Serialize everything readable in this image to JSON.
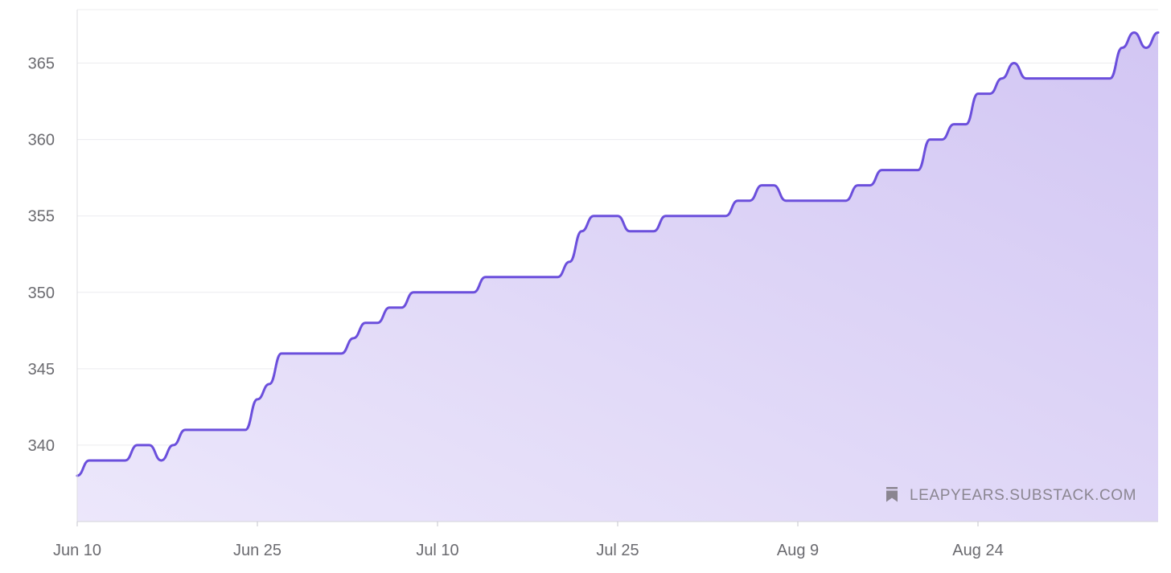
{
  "chart_data": {
    "type": "area",
    "title": "",
    "xlabel": "",
    "ylabel": "",
    "ylim": [
      335,
      368.5
    ],
    "xlim": [
      "2024-06-10",
      "2024-09-08"
    ],
    "y_ticks": [
      340,
      345,
      350,
      355,
      360,
      365
    ],
    "x_ticks": [
      {
        "date": "2024-06-10",
        "label": "Jun 10"
      },
      {
        "date": "2024-06-25",
        "label": "Jun 25"
      },
      {
        "date": "2024-07-10",
        "label": "Jul 10"
      },
      {
        "date": "2024-07-25",
        "label": "Jul 25"
      },
      {
        "date": "2024-08-09",
        "label": "Aug 9"
      },
      {
        "date": "2024-08-24",
        "label": "Aug 24"
      }
    ],
    "grid": true,
    "legend": "none",
    "series": [
      {
        "x": [
          "2024-06-10",
          "2024-06-11",
          "2024-06-13",
          "2024-06-14",
          "2024-06-15",
          "2024-06-16",
          "2024-06-17",
          "2024-06-18",
          "2024-06-19",
          "2024-06-20",
          "2024-06-23",
          "2024-06-24",
          "2024-06-25",
          "2024-06-26",
          "2024-06-27",
          "2024-06-28",
          "2024-06-29",
          "2024-06-30",
          "2024-07-01",
          "2024-07-02",
          "2024-07-03",
          "2024-07-04",
          "2024-07-05",
          "2024-07-06",
          "2024-07-07",
          "2024-07-08",
          "2024-07-09",
          "2024-07-10",
          "2024-07-13",
          "2024-07-14",
          "2024-07-15",
          "2024-07-19",
          "2024-07-20",
          "2024-07-21",
          "2024-07-22",
          "2024-07-23",
          "2024-07-24",
          "2024-07-25",
          "2024-07-26",
          "2024-07-27",
          "2024-07-28",
          "2024-07-29",
          "2024-07-30",
          "2024-08-03",
          "2024-08-04",
          "2024-08-05",
          "2024-08-06",
          "2024-08-07",
          "2024-08-08",
          "2024-08-09",
          "2024-08-10",
          "2024-08-12",
          "2024-08-13",
          "2024-08-14",
          "2024-08-15",
          "2024-08-16",
          "2024-08-17",
          "2024-08-18",
          "2024-08-19",
          "2024-08-20",
          "2024-08-21",
          "2024-08-22",
          "2024-08-23",
          "2024-08-24",
          "2024-08-25",
          "2024-08-26",
          "2024-08-27",
          "2024-08-28",
          "2024-08-31",
          "2024-09-01",
          "2024-09-02",
          "2024-09-03",
          "2024-09-04",
          "2024-09-05",
          "2024-09-06",
          "2024-09-07",
          "2024-09-08"
        ],
        "y": [
          338,
          339,
          339,
          339,
          340,
          340,
          339,
          340,
          341,
          341,
          341,
          341,
          343,
          344,
          346,
          346,
          346,
          346,
          346,
          346,
          347,
          348,
          348,
          349,
          349,
          350,
          350,
          350,
          350,
          351,
          351,
          351,
          351,
          352,
          354,
          355,
          355,
          355,
          354,
          354,
          354,
          355,
          355,
          355,
          356,
          356,
          357,
          357,
          356,
          356,
          356,
          356,
          356,
          357,
          357,
          358,
          358,
          358,
          358,
          360,
          360,
          361,
          361,
          363,
          363,
          364,
          365,
          364,
          364,
          364,
          364,
          364,
          364,
          366,
          367,
          366,
          367
        ]
      }
    ],
    "colors": {
      "line": "#6b4fdc",
      "fill_top": "#d2c6f3",
      "fill_bottom": "#ece7fb"
    }
  },
  "watermark": {
    "icon": "bookmark-icon",
    "text": "LEAPYEARS.SUBSTACK.COM"
  }
}
